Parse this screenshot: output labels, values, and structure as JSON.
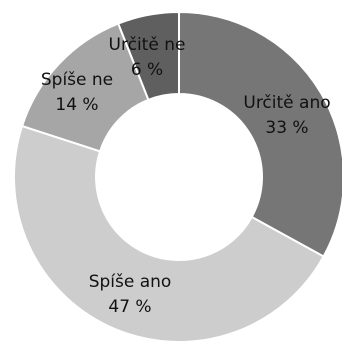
{
  "chart_data": {
    "type": "pie",
    "style": "donut",
    "categories": [
      "Určitě ano",
      "Spíše ano",
      "Spíše ne",
      "Určitě ne"
    ],
    "values": [
      33,
      47,
      14,
      6
    ],
    "value_labels": [
      "33 %",
      "47 %",
      "14 %",
      "6 %"
    ],
    "colors": [
      "#767676",
      "#cdcdcd",
      "#a6a6a6",
      "#5f5f5f"
    ],
    "legend": "none"
  }
}
